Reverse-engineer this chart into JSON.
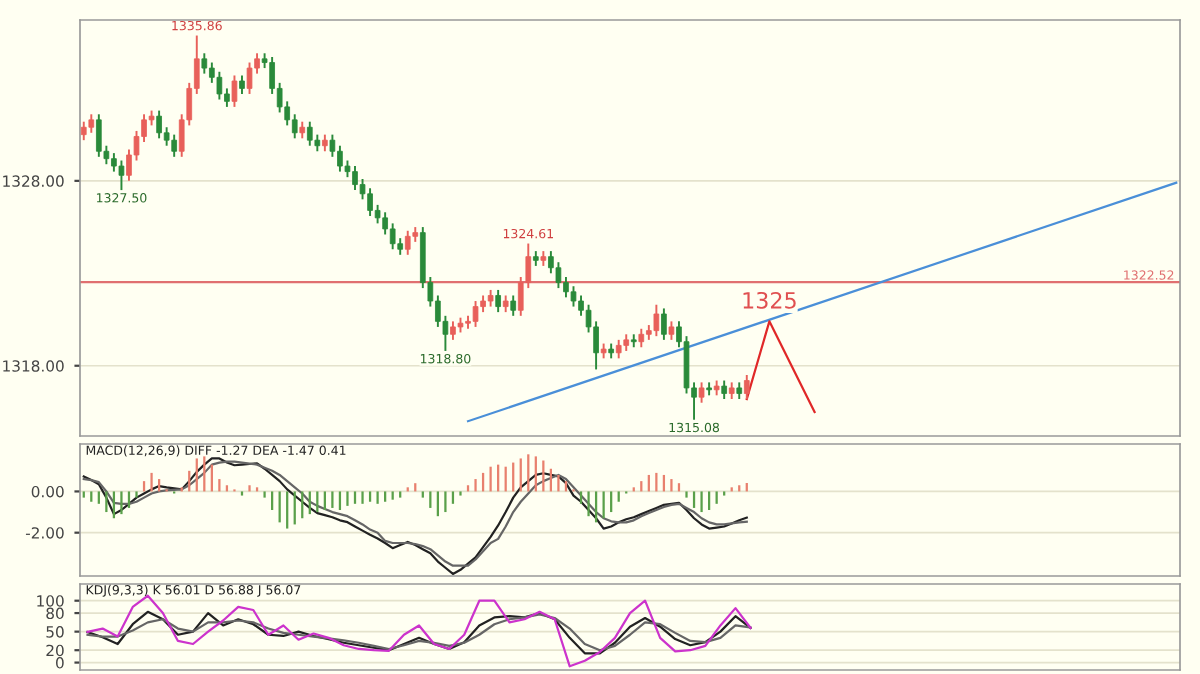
{
  "chart_data": [
    {
      "type": "candlestick",
      "tick_labels": "y",
      "grid": "y",
      "ylim": [
        1314.2,
        1336.7
      ],
      "yticks": [
        {
          "value": 1318,
          "label": "1318.00"
        },
        {
          "value": 1328,
          "label": "1328.00"
        }
      ],
      "categories": [
        null,
        null,
        null,
        null,
        null,
        null,
        null,
        null,
        null,
        null,
        null,
        null,
        null,
        null,
        null,
        null,
        null,
        null,
        null,
        null,
        null,
        null,
        null,
        null,
        null,
        null,
        null,
        null,
        null,
        null,
        null,
        null,
        null,
        null,
        null,
        null,
        null,
        null,
        null,
        null,
        null,
        null,
        null,
        null,
        null,
        null,
        null,
        null,
        null,
        null,
        null,
        null,
        null,
        null,
        null,
        null,
        null,
        null,
        null,
        null,
        null,
        null,
        null,
        null,
        null,
        null,
        null,
        null,
        null,
        null,
        null,
        null,
        null,
        null,
        null,
        null,
        null,
        null,
        null,
        null,
        null,
        null,
        null,
        null,
        null,
        null,
        null,
        null,
        null,
        null,
        null,
        null,
        null,
        null,
        null,
        null,
        null,
        null,
        null,
        null,
        null,
        null,
        null,
        null,
        null,
        null,
        null,
        null,
        null,
        null,
        null,
        null,
        null,
        null,
        null,
        null,
        null,
        null,
        null,
        null,
        null,
        null,
        null,
        null,
        null,
        null,
        null,
        null,
        null,
        null,
        null,
        null,
        null,
        null,
        null,
        null,
        null,
        null,
        null,
        null,
        null,
        null,
        null,
        null,
        null,
        null
      ],
      "ohlc": [
        [
          1330.5,
          1331.2,
          1330.2,
          1330.9
        ],
        [
          1330.9,
          1331.6,
          1330.6,
          1331.3
        ],
        [
          1331.3,
          1331.6,
          1329.3,
          1329.6
        ],
        [
          1329.6,
          1329.9,
          1328.9,
          1329.2
        ],
        [
          1329.2,
          1329.5,
          1328.5,
          1328.8
        ],
        [
          1328.8,
          1329.1,
          1327.5,
          1328.3
        ],
        [
          1328.3,
          1329.7,
          1328.0,
          1329.4
        ],
        [
          1329.4,
          1330.7,
          1329.1,
          1330.4
        ],
        [
          1330.4,
          1331.6,
          1330.1,
          1331.3
        ],
        [
          1331.3,
          1331.8,
          1331.0,
          1331.5
        ],
        [
          1331.5,
          1331.8,
          1330.3,
          1330.6
        ],
        [
          1330.6,
          1330.9,
          1329.9,
          1330.2
        ],
        [
          1330.2,
          1330.5,
          1329.3,
          1329.6
        ],
        [
          1329.6,
          1331.6,
          1329.3,
          1331.3
        ],
        [
          1331.3,
          1333.3,
          1331.0,
          1333.0
        ],
        [
          1333.0,
          1335.86,
          1332.7,
          1334.6
        ],
        [
          1334.6,
          1334.9,
          1333.8,
          1334.1
        ],
        [
          1334.1,
          1334.4,
          1333.3,
          1333.6
        ],
        [
          1333.6,
          1333.9,
          1332.4,
          1332.7
        ],
        [
          1332.7,
          1333.0,
          1332.0,
          1332.3
        ],
        [
          1332.3,
          1333.7,
          1332.0,
          1333.4
        ],
        [
          1333.4,
          1333.7,
          1332.7,
          1333.0
        ],
        [
          1333.0,
          1334.4,
          1332.7,
          1334.1
        ],
        [
          1334.1,
          1334.9,
          1333.8,
          1334.6
        ],
        [
          1334.6,
          1334.9,
          1334.1,
          1334.4
        ],
        [
          1334.4,
          1334.7,
          1332.7,
          1333.0
        ],
        [
          1333.0,
          1333.3,
          1331.7,
          1332.0
        ],
        [
          1332.0,
          1332.3,
          1331.0,
          1331.3
        ],
        [
          1331.3,
          1331.6,
          1330.3,
          1330.6
        ],
        [
          1330.6,
          1331.2,
          1330.3,
          1330.9
        ],
        [
          1330.9,
          1331.2,
          1329.9,
          1330.2
        ],
        [
          1330.2,
          1330.5,
          1329.6,
          1329.9
        ],
        [
          1329.9,
          1330.5,
          1329.6,
          1330.2
        ],
        [
          1330.2,
          1330.5,
          1329.3,
          1329.6
        ],
        [
          1329.6,
          1329.9,
          1328.5,
          1328.8
        ],
        [
          1328.8,
          1329.1,
          1328.2,
          1328.5
        ],
        [
          1328.5,
          1328.8,
          1327.5,
          1327.8
        ],
        [
          1327.8,
          1328.1,
          1327.0,
          1327.3
        ],
        [
          1327.3,
          1327.6,
          1326.1,
          1326.4
        ],
        [
          1326.4,
          1326.7,
          1325.7,
          1326.0
        ],
        [
          1326.0,
          1326.3,
          1325.1,
          1325.4
        ],
        [
          1325.4,
          1325.7,
          1324.3,
          1324.6
        ],
        [
          1324.6,
          1324.9,
          1324.0,
          1324.3
        ],
        [
          1324.3,
          1325.3,
          1324.0,
          1325.0
        ],
        [
          1325.0,
          1325.5,
          1324.7,
          1325.2
        ],
        [
          1325.2,
          1325.5,
          1322.2,
          1322.5
        ],
        [
          1322.5,
          1322.8,
          1321.2,
          1321.5
        ],
        [
          1321.5,
          1321.8,
          1320.1,
          1320.4
        ],
        [
          1320.4,
          1320.7,
          1318.8,
          1319.7
        ],
        [
          1319.7,
          1320.4,
          1319.4,
          1320.1
        ],
        [
          1320.1,
          1320.6,
          1319.8,
          1320.3
        ],
        [
          1320.3,
          1320.7,
          1320.0,
          1320.4
        ],
        [
          1320.4,
          1321.5,
          1320.1,
          1321.2
        ],
        [
          1321.2,
          1321.8,
          1320.9,
          1321.5
        ],
        [
          1321.5,
          1322.1,
          1321.2,
          1321.8
        ],
        [
          1321.8,
          1322.1,
          1320.9,
          1321.2
        ],
        [
          1321.2,
          1321.8,
          1320.9,
          1321.5
        ],
        [
          1321.5,
          1321.8,
          1320.7,
          1321.0
        ],
        [
          1321.0,
          1322.8,
          1320.7,
          1322.5
        ],
        [
          1322.5,
          1324.61,
          1322.2,
          1323.9
        ],
        [
          1323.9,
          1324.2,
          1323.4,
          1323.7
        ],
        [
          1323.7,
          1324.2,
          1323.4,
          1323.9
        ],
        [
          1323.9,
          1324.2,
          1323.0,
          1323.3
        ],
        [
          1323.3,
          1323.6,
          1322.2,
          1322.5
        ],
        [
          1322.5,
          1322.8,
          1321.7,
          1322.0
        ],
        [
          1322.0,
          1322.3,
          1321.2,
          1321.5
        ],
        [
          1321.5,
          1321.8,
          1320.7,
          1321.0
        ],
        [
          1321.0,
          1321.3,
          1319.8,
          1320.1
        ],
        [
          1320.1,
          1320.4,
          1317.8,
          1318.7
        ],
        [
          1318.7,
          1319.2,
          1318.4,
          1318.9
        ],
        [
          1318.9,
          1319.2,
          1318.4,
          1318.7
        ],
        [
          1318.7,
          1319.4,
          1318.4,
          1319.1
        ],
        [
          1319.1,
          1319.7,
          1318.8,
          1319.4
        ],
        [
          1319.4,
          1319.7,
          1319.0,
          1319.3
        ],
        [
          1319.3,
          1320.0,
          1319.0,
          1319.7
        ],
        [
          1319.7,
          1320.2,
          1319.4,
          1319.9
        ],
        [
          1319.9,
          1321.3,
          1319.6,
          1320.8
        ],
        [
          1320.8,
          1321.1,
          1319.4,
          1319.7
        ],
        [
          1319.7,
          1320.4,
          1319.4,
          1320.1
        ],
        [
          1320.1,
          1320.4,
          1319.0,
          1319.3
        ],
        [
          1319.3,
          1319.6,
          1316.5,
          1316.8
        ],
        [
          1316.8,
          1317.1,
          1315.08,
          1316.3
        ],
        [
          1316.3,
          1317.1,
          1316.0,
          1316.8
        ],
        [
          1316.8,
          1317.1,
          1316.4,
          1316.7
        ],
        [
          1316.7,
          1317.2,
          1316.4,
          1316.9
        ],
        [
          1316.9,
          1317.2,
          1316.2,
          1316.5
        ],
        [
          1316.5,
          1317.1,
          1316.2,
          1316.8
        ],
        [
          1316.8,
          1317.1,
          1316.2,
          1316.5
        ],
        [
          1316.5,
          1317.5,
          1316.2,
          1317.2
        ],
        null,
        null,
        null,
        null,
        null,
        null,
        null,
        null,
        null,
        null,
        null,
        null,
        null,
        null,
        null,
        null,
        null,
        null,
        null,
        null,
        null,
        null,
        null,
        null,
        null,
        null,
        null,
        null,
        null,
        null,
        null,
        null,
        null,
        null,
        null,
        null,
        null,
        null,
        null,
        null,
        null,
        null,
        null,
        null,
        null,
        null,
        null,
        null,
        null,
        null,
        null,
        null,
        null,
        null,
        null,
        null,
        null
      ],
      "colors": [
        "#e8605a",
        "#e8605a",
        "#2a8a3a",
        "#2a8a3a",
        "#2a8a3a",
        "#2a8a3a",
        "#e8605a",
        "#e8605a",
        "#e8605a",
        "#e8605a",
        "#2a8a3a",
        "#2a8a3a",
        "#2a8a3a",
        "#e8605a",
        "#e8605a",
        "#e8605a",
        "#2a8a3a",
        "#2a8a3a",
        "#2a8a3a",
        "#2a8a3a",
        "#e8605a",
        "#2a8a3a",
        "#e8605a",
        "#e8605a",
        "#2a8a3a",
        "#2a8a3a",
        "#2a8a3a",
        "#2a8a3a",
        "#2a8a3a",
        "#e8605a",
        "#2a8a3a",
        "#2a8a3a",
        "#e8605a",
        "#2a8a3a",
        "#2a8a3a",
        "#2a8a3a",
        "#2a8a3a",
        "#2a8a3a",
        "#2a8a3a",
        "#2a8a3a",
        "#2a8a3a",
        "#2a8a3a",
        "#2a8a3a",
        "#e8605a",
        "#e8605a",
        "#2a8a3a",
        "#2a8a3a",
        "#2a8a3a",
        "#2a8a3a",
        "#e8605a",
        "#e8605a",
        "#e8605a",
        "#e8605a",
        "#e8605a",
        "#e8605a",
        "#2a8a3a",
        "#e8605a",
        "#2a8a3a",
        "#e8605a",
        "#e8605a",
        "#2a8a3a",
        "#e8605a",
        "#2a8a3a",
        "#2a8a3a",
        "#2a8a3a",
        "#2a8a3a",
        "#2a8a3a",
        "#2a8a3a",
        "#2a8a3a",
        "#e8605a",
        "#2a8a3a",
        "#e8605a",
        "#e8605a",
        "#2a8a3a",
        "#e8605a",
        "#e8605a",
        "#e8605a",
        "#2a8a3a",
        "#e8605a",
        "#2a8a3a",
        "#2a8a3a",
        "#2a8a3a",
        "#e8605a",
        "#2a8a3a",
        "#e8605a",
        "#2a8a3a",
        "#e8605a",
        "#2a8a3a",
        "#e8605a",
        null,
        null,
        null,
        null,
        null,
        null,
        null,
        null,
        null,
        null,
        null,
        null,
        null,
        null,
        null,
        null,
        null,
        null,
        null,
        null,
        null,
        null,
        null,
        null,
        null,
        null,
        null,
        null,
        null,
        null,
        null,
        null,
        null,
        null,
        null,
        null,
        null,
        null,
        null,
        null,
        null,
        null,
        null,
        null,
        null,
        null,
        null,
        null,
        null,
        null,
        null,
        null,
        null,
        null,
        null,
        null,
        null
      ],
      "series": [
        {
          "type": "line",
          "values": [
            null,
            null,
            null,
            null,
            null,
            null,
            null,
            null,
            null,
            null,
            null,
            null,
            null,
            null,
            null,
            null,
            null,
            null,
            null,
            null,
            null,
            null,
            null,
            null,
            null,
            null,
            null,
            null,
            null,
            null,
            null,
            null,
            null,
            null,
            null,
            null,
            null,
            null,
            null,
            null,
            null,
            null,
            null,
            null,
            null,
            null,
            null,
            null,
            null,
            null,
            null,
            1315.0,
            null,
            null,
            null,
            null,
            null,
            null,
            null,
            null,
            null,
            null,
            null,
            null,
            null,
            null,
            null,
            null,
            null,
            null,
            null,
            null,
            null,
            null,
            null,
            null,
            null,
            null,
            null,
            null,
            null,
            null,
            null,
            null,
            null,
            null,
            null,
            null,
            null,
            null,
            null,
            null,
            null,
            null,
            null,
            null,
            null,
            null,
            null,
            null,
            null,
            null,
            null,
            null,
            null,
            null,
            null,
            null,
            null,
            null,
            null,
            null,
            null,
            null,
            null,
            null,
            null,
            null,
            null,
            null,
            null,
            null,
            null,
            null,
            null,
            null,
            null,
            null,
            null,
            null,
            null,
            null,
            null,
            null,
            null,
            null,
            null,
            null,
            null,
            null,
            null,
            null,
            null,
            null,
            null,
            1327.9
          ],
          "color": "#4a8fd8"
        },
        {
          "type": "line",
          "values": [
            null,
            null,
            null,
            null,
            null,
            null,
            null,
            null,
            null,
            null,
            null,
            null,
            null,
            null,
            null,
            null,
            null,
            null,
            null,
            null,
            null,
            null,
            null,
            null,
            null,
            null,
            null,
            null,
            null,
            null,
            null,
            null,
            null,
            null,
            null,
            null,
            null,
            null,
            null,
            null,
            null,
            null,
            null,
            null,
            null,
            null,
            null,
            null,
            null,
            null,
            null,
            null,
            null,
            null,
            null,
            null,
            null,
            null,
            null,
            null,
            null,
            null,
            null,
            null,
            null,
            null,
            null,
            null,
            null,
            null,
            null,
            null,
            null,
            null,
            null,
            null,
            null,
            null,
            null,
            null,
            null,
            null,
            null,
            null,
            null,
            null,
            null,
            null,
            1316.2,
            null,
            null,
            1320.4,
            null,
            null,
            null,
            null,
            null,
            1315.5,
            null,
            null,
            null,
            null,
            null,
            null,
            null,
            null,
            null,
            null,
            null,
            null,
            null,
            null,
            null,
            null,
            null,
            null,
            null,
            null,
            null,
            null,
            null,
            null,
            null,
            null,
            null,
            null,
            null,
            null,
            null,
            null,
            null,
            null,
            null,
            null,
            null,
            null,
            null,
            null,
            null,
            null,
            null,
            null,
            null,
            null,
            null,
            null
          ],
          "color": "#e02828"
        }
      ],
      "ref_lines": [
        {
          "axis": "y",
          "value": 1322.52,
          "label": "1322.52",
          "color": "#e07070"
        }
      ],
      "annotations": [
        {
          "text": "1335.86",
          "y": 1335.86
        },
        {
          "text": "1327.50",
          "y": 1327.5
        },
        {
          "text": "1318.80",
          "y": 1318.8
        },
        {
          "text": "1324.61",
          "y": 1324.61
        },
        {
          "text": "1315.08",
          "y": 1315.08
        },
        {
          "text": "1325",
          "y": 1320.4
        }
      ]
    },
    {
      "type": "line",
      "title": "MACD(12,26,9) DIFF -1.27 DEA -1.47 0.41",
      "tick_labels": "y",
      "grid": "y",
      "ylim": [
        -4.1,
        2.3
      ],
      "yticks": [
        {
          "value": 0,
          "label": "0.00"
        },
        {
          "value": -2,
          "label": "-2.00"
        }
      ],
      "categories": [
        null,
        null,
        null,
        null,
        null,
        null,
        null,
        null,
        null,
        null,
        null,
        null,
        null,
        null,
        null,
        null,
        null,
        null,
        null,
        null,
        null,
        null,
        null,
        null,
        null,
        null,
        null,
        null,
        null,
        null,
        null,
        null,
        null,
        null,
        null,
        null,
        null,
        null,
        null,
        null,
        null,
        null,
        null,
        null,
        null,
        null,
        null,
        null,
        null,
        null,
        null,
        null,
        null,
        null,
        null,
        null,
        null,
        null,
        null,
        null,
        null,
        null,
        null,
        null,
        null,
        null,
        null,
        null,
        null,
        null,
        null,
        null,
        null,
        null,
        null,
        null,
        null,
        null,
        null,
        null,
        null,
        null,
        null,
        null,
        null,
        null,
        null,
        null,
        null,
        null,
        null,
        null,
        null,
        null,
        null,
        null,
        null,
        null,
        null,
        null,
        null,
        null,
        null,
        null,
        null,
        null,
        null,
        null,
        null,
        null,
        null,
        null,
        null,
        null,
        null,
        null,
        null,
        null,
        null,
        null,
        null,
        null,
        null,
        null,
        null,
        null,
        null,
        null,
        null,
        null,
        null,
        null,
        null,
        null,
        null,
        null,
        null,
        null,
        null,
        null,
        null,
        null,
        null,
        null,
        null,
        null
      ],
      "series": [
        {
          "type": "bar",
          "values": [
            -0.3,
            -0.5,
            -0.6,
            -1.0,
            -1.3,
            -1.1,
            -0.8,
            -0.3,
            0.5,
            0.9,
            0.6,
            0.1,
            -0.1,
            0.2,
            1.0,
            1.6,
            1.7,
            1.3,
            0.6,
            0.3,
            0.1,
            -0.2,
            0.3,
            0.2,
            -0.3,
            -0.9,
            -1.5,
            -1.8,
            -1.6,
            -1.3,
            -1.1,
            -1.0,
            -0.9,
            -0.8,
            -0.9,
            -0.7,
            -0.6,
            -0.6,
            -0.5,
            -0.6,
            -0.5,
            -0.4,
            -0.3,
            0.2,
            0.4,
            -0.3,
            -0.8,
            -1.2,
            -1.0,
            -0.6,
            -0.2,
            0.3,
            0.6,
            0.9,
            1.2,
            1.3,
            1.2,
            1.4,
            1.6,
            1.8,
            1.7,
            1.5,
            1.1,
            0.8,
            0.5,
            0.1,
            -0.6,
            -1.2,
            -1.5,
            -1.3,
            -1.0,
            -0.5,
            -0.1,
            0.2,
            0.5,
            0.8,
            0.9,
            0.8,
            0.6,
            0.4,
            -0.3,
            -0.8,
            -1.0,
            -0.9,
            -0.6,
            -0.2,
            0.2,
            0.3,
            0.41,
            null,
            null,
            null,
            null,
            null,
            null,
            null,
            null,
            null,
            null,
            null,
            null,
            null,
            null,
            null,
            null,
            null,
            null,
            null,
            null,
            null,
            null,
            null,
            null,
            null,
            null,
            null,
            null,
            null,
            null,
            null,
            null,
            null,
            null,
            null,
            null,
            null,
            null,
            null,
            null,
            null,
            null,
            null,
            null,
            null,
            null,
            null,
            null,
            null,
            null,
            null,
            null,
            null,
            null,
            null,
            null,
            null
          ],
          "colors": [
            "#5aa04a",
            "#5aa04a",
            "#5aa04a",
            "#5aa04a",
            "#5aa04a",
            "#5aa04a",
            "#5aa04a",
            "#5aa04a",
            "#e8806e",
            "#e8806e",
            "#e8806e",
            "#e8806e",
            "#5aa04a",
            "#e8806e",
            "#e8806e",
            "#e8806e",
            "#e8806e",
            "#e8806e",
            "#e8806e",
            "#e8806e",
            "#e8806e",
            "#5aa04a",
            "#e8806e",
            "#e8806e",
            "#5aa04a",
            "#5aa04a",
            "#5aa04a",
            "#5aa04a",
            "#5aa04a",
            "#5aa04a",
            "#5aa04a",
            "#5aa04a",
            "#5aa04a",
            "#5aa04a",
            "#5aa04a",
            "#5aa04a",
            "#5aa04a",
            "#5aa04a",
            "#5aa04a",
            "#5aa04a",
            "#5aa04a",
            "#5aa04a",
            "#5aa04a",
            "#e8806e",
            "#e8806e",
            "#5aa04a",
            "#5aa04a",
            "#5aa04a",
            "#5aa04a",
            "#5aa04a",
            "#5aa04a",
            "#e8806e",
            "#e8806e",
            "#e8806e",
            "#e8806e",
            "#e8806e",
            "#e8806e",
            "#e8806e",
            "#e8806e",
            "#e8806e",
            "#e8806e",
            "#e8806e",
            "#e8806e",
            "#e8806e",
            "#e8806e",
            "#e8806e",
            "#5aa04a",
            "#5aa04a",
            "#5aa04a",
            "#5aa04a",
            "#5aa04a",
            "#5aa04a",
            "#5aa04a",
            "#e8806e",
            "#e8806e",
            "#e8806e",
            "#e8806e",
            "#e8806e",
            "#e8806e",
            "#e8806e",
            "#5aa04a",
            "#5aa04a",
            "#5aa04a",
            "#5aa04a",
            "#5aa04a",
            "#5aa04a",
            "#e8806e",
            "#e8806e",
            "#e8806e",
            null,
            null,
            null,
            null,
            null,
            null,
            null,
            null,
            null,
            null,
            null,
            null,
            null,
            null,
            null,
            null,
            null,
            null,
            null,
            null,
            null,
            null,
            null,
            null,
            null,
            null,
            null,
            null,
            null,
            null,
            null,
            null,
            null,
            null,
            null,
            null,
            null,
            null,
            null,
            null,
            null,
            null,
            null,
            null,
            null,
            null,
            null,
            null,
            null,
            null,
            null,
            null,
            null,
            null,
            null,
            null,
            null
          ]
        },
        {
          "type": "line",
          "values": [
            0.73,
            0.55,
            0.35,
            -0.3,
            -1.1,
            -0.9,
            -0.6,
            -0.3,
            -0.1,
            0.1,
            0.26,
            0.2,
            0.15,
            0.1,
            0.5,
            0.95,
            1.3,
            1.6,
            1.6,
            1.4,
            1.27,
            1.3,
            1.33,
            1.36,
            1.1,
            0.8,
            0.5,
            0.1,
            -0.2,
            -0.5,
            -0.8,
            -1.05,
            -1.15,
            -1.25,
            -1.4,
            -1.49,
            -1.7,
            -1.9,
            -2.1,
            -2.28,
            -2.5,
            -2.75,
            -2.6,
            -2.45,
            -2.6,
            -2.8,
            -3.0,
            -3.4,
            -3.7,
            -4.0,
            -3.8,
            -3.5,
            -3.2,
            -2.7,
            -2.2,
            -1.65,
            -1.0,
            -0.3,
            0.2,
            0.5,
            0.8,
            0.88,
            0.8,
            0.73,
            0.4,
            -0.2,
            -0.5,
            -0.9,
            -1.3,
            -1.8,
            -1.7,
            -1.5,
            -1.35,
            -1.25,
            -1.1,
            -0.95,
            -0.8,
            -0.65,
            -0.6,
            -0.55,
            -0.9,
            -1.3,
            -1.6,
            -1.8,
            -1.75,
            -1.7,
            -1.55,
            -1.4,
            -1.27,
            null,
            null,
            null,
            null,
            null,
            null,
            null,
            null,
            null,
            null,
            null,
            null,
            null,
            null,
            null,
            null,
            null,
            null,
            null,
            null,
            null,
            null,
            null,
            null,
            null,
            null,
            null,
            null,
            null,
            null,
            null,
            null,
            null,
            null,
            null,
            null,
            null,
            null,
            null,
            null,
            null,
            null,
            null,
            null,
            null,
            null,
            null,
            null,
            null,
            null,
            null,
            null,
            null,
            null,
            null,
            null,
            null
          ],
          "color": "#222222"
        },
        {
          "type": "line",
          "values": [
            0.6,
            0.55,
            0.45,
            0,
            -0.55,
            -0.6,
            -0.6,
            -0.5,
            -0.3,
            -0.1,
            0,
            0.05,
            0.08,
            0.1,
            0.3,
            0.6,
            0.9,
            1.3,
            1.4,
            1.45,
            1.45,
            1.4,
            1.35,
            1.3,
            1.15,
            1.0,
            0.8,
            0.5,
            0.2,
            -0.1,
            -0.5,
            -0.7,
            -0.85,
            -1.0,
            -1.1,
            -1.2,
            -1.4,
            -1.6,
            -1.85,
            -2.0,
            -2.4,
            -2.5,
            -2.5,
            -2.5,
            -2.55,
            -2.65,
            -2.8,
            -3.1,
            -3.4,
            -3.6,
            -3.6,
            -3.6,
            -3.3,
            -2.9,
            -2.5,
            -2.3,
            -1.7,
            -1.0,
            -0.5,
            -0.1,
            0.3,
            0.5,
            0.65,
            0.8,
            0.6,
            0.2,
            -0.2,
            -0.6,
            -1.0,
            -1.3,
            -1.45,
            -1.5,
            -1.5,
            -1.4,
            -1.2,
            -1.05,
            -0.9,
            -0.75,
            -0.65,
            -0.6,
            -0.8,
            -1.0,
            -1.3,
            -1.5,
            -1.6,
            -1.6,
            -1.55,
            -1.5,
            -1.47,
            null,
            null,
            null,
            null,
            null,
            null,
            null,
            null,
            null,
            null,
            null,
            null,
            null,
            null,
            null,
            null,
            null,
            null,
            null,
            null,
            null,
            null,
            null,
            null,
            null,
            null,
            null,
            null,
            null,
            null,
            null,
            null,
            null,
            null,
            null,
            null,
            null,
            null,
            null,
            null,
            null,
            null,
            null,
            null,
            null,
            null,
            null,
            null,
            null,
            null,
            null,
            null,
            null,
            null,
            null,
            null,
            null
          ],
          "color": "#666666"
        }
      ]
    },
    {
      "type": "line",
      "title": "KDJ(9,3,3) K 56.01 D 56.88 J 56.07",
      "tick_labels": "y",
      "grid": "y",
      "ylim": [
        -12,
        127
      ],
      "yticks": [
        0,
        20,
        50,
        80,
        100
      ],
      "categories": [
        null,
        null,
        null,
        null,
        null,
        null,
        null,
        null,
        null,
        null,
        null,
        null,
        null,
        null,
        null,
        null,
        null,
        null,
        null,
        null,
        null,
        null,
        null,
        null,
        null,
        null,
        null,
        null,
        null,
        null,
        null,
        null,
        null,
        null,
        null,
        null,
        null,
        null,
        null,
        null,
        null,
        null,
        null,
        null,
        null,
        null,
        null,
        null,
        null,
        null,
        null,
        null,
        null,
        null,
        null,
        null,
        null,
        null,
        null,
        null,
        null,
        null,
        null,
        null,
        null,
        null,
        null,
        null,
        null,
        null,
        null,
        null,
        null
      ],
      "series": [
        {
          "values": [
            49.5,
            41,
            30,
            62,
            82,
            70,
            45,
            50,
            80,
            60,
            70,
            62,
            45,
            43,
            50,
            43,
            38,
            32,
            28,
            24,
            20,
            30,
            40,
            30,
            22,
            33,
            60,
            73,
            75,
            73,
            80,
            70,
            40,
            15,
            15,
            32,
            58,
            72,
            58,
            38,
            28,
            33,
            50,
            75,
            56.01,
            null,
            null,
            null,
            null,
            null,
            null,
            null,
            null,
            null,
            null,
            null,
            null,
            null,
            null,
            null,
            null,
            null,
            null,
            null,
            null,
            null,
            null,
            null,
            null,
            null,
            null,
            null,
            null
          ],
          "color": "#222222"
        },
        {
          "values": [
            45,
            42,
            42,
            52,
            65,
            70,
            55,
            50,
            65,
            65,
            68,
            65,
            55,
            48,
            45,
            42,
            39,
            36,
            32,
            27,
            22,
            28,
            35,
            32,
            27,
            32,
            45,
            62,
            70,
            73,
            78,
            72,
            55,
            30,
            20,
            27,
            45,
            65,
            62,
            48,
            35,
            33,
            40,
            60,
            56.88,
            null,
            null,
            null,
            null,
            null,
            null,
            null,
            null,
            null,
            null,
            null,
            null,
            null,
            null,
            null,
            null,
            null,
            null,
            null,
            null,
            null,
            null,
            null,
            null,
            null,
            null,
            null,
            null
          ],
          "color": "#666666"
        },
        {
          "values": [
            49.5,
            55,
            42,
            90,
            108,
            80,
            35,
            30,
            50,
            68,
            90,
            85,
            45,
            60,
            37,
            47,
            40,
            28,
            22,
            20,
            19,
            45,
            60,
            30,
            22,
            45,
            100,
            100,
            65,
            70,
            82,
            70,
            -6,
            3,
            17,
            40,
            80,
            100,
            40,
            18,
            20,
            27,
            60,
            88,
            56.07,
            null,
            null,
            null,
            null,
            null,
            null,
            null,
            null,
            null,
            null,
            null,
            null,
            null,
            null,
            null,
            null,
            null,
            null,
            null,
            null,
            null,
            null,
            null,
            null,
            null,
            null,
            null,
            null
          ],
          "color": "#cc33cc"
        }
      ]
    }
  ]
}
